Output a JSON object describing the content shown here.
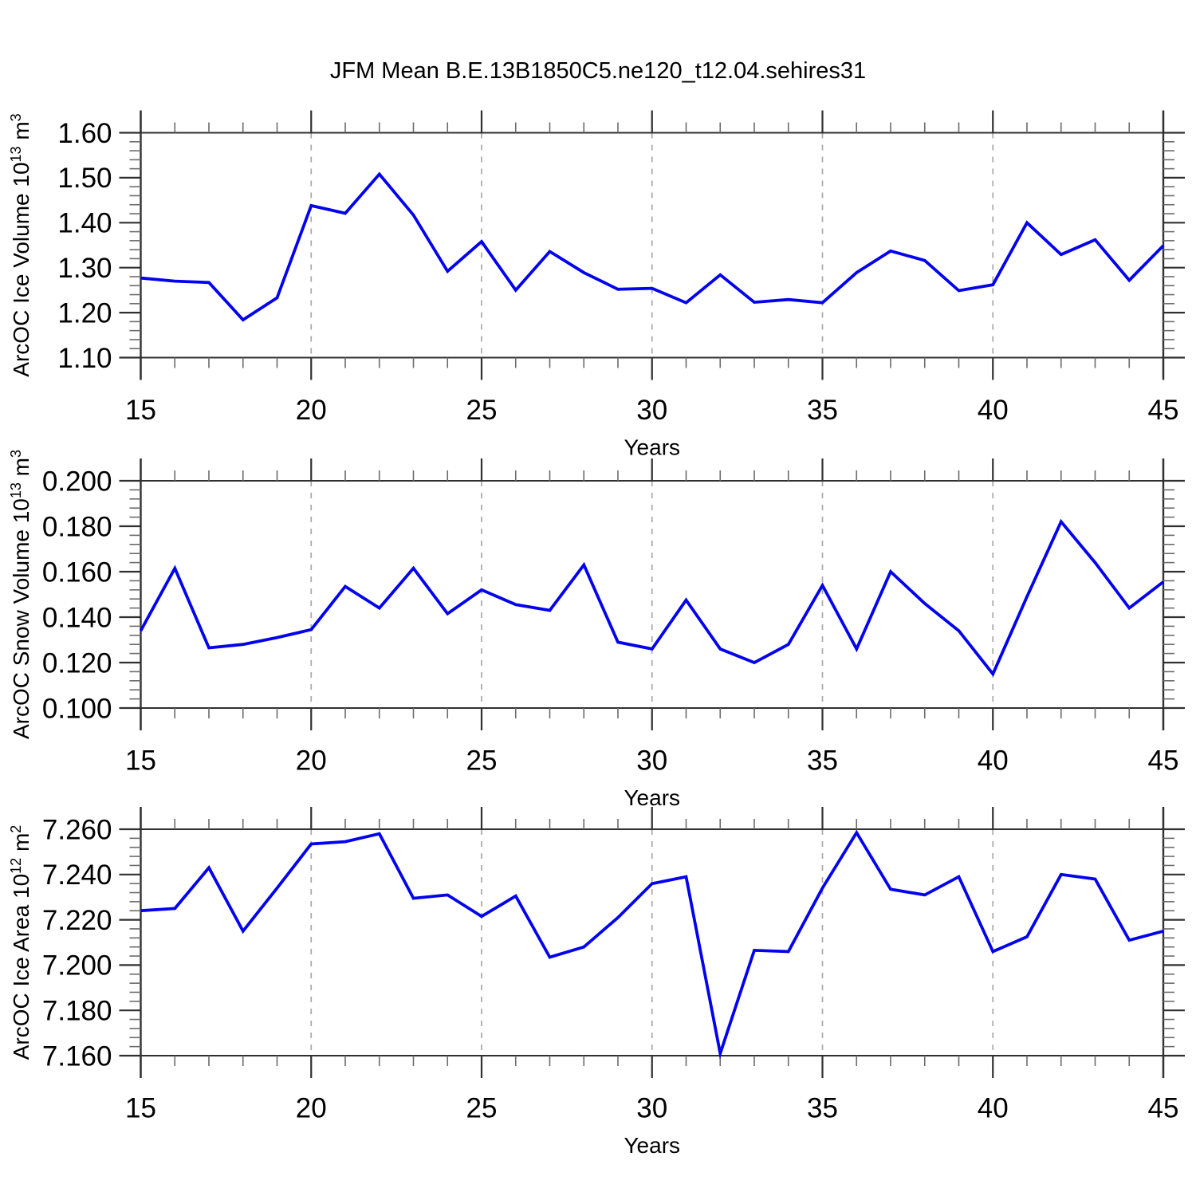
{
  "title": "JFM Mean B.E.13B1850C5.ne120_t12.04.sehires31",
  "colors": {
    "line": "#0202EF",
    "axis": "#303030",
    "minor_tick": "#6B6B6B",
    "grid_dashed": "#A8A8A8",
    "text": "#000000",
    "background": "#FFFFFF"
  },
  "chart_data": [
    {
      "type": "line",
      "title": "JFM Mean B.E.13B1850C5.ne120_t12.04.sehires31",
      "xlabel": "Years",
      "ylabel": "ArcOC Ice Volume 10^13 m^3",
      "ylabel_parts": [
        {
          "text": "ArcOC Ice Volume 10"
        },
        {
          "text": "13",
          "sup": true
        },
        {
          "text": " m"
        },
        {
          "text": "3",
          "sup": true
        }
      ],
      "x": [
        15,
        16,
        17,
        18,
        19,
        20,
        21,
        22,
        23,
        24,
        25,
        26,
        27,
        28,
        29,
        30,
        31,
        32,
        33,
        34,
        35,
        36,
        37,
        38,
        39,
        40,
        41,
        42,
        43,
        44,
        45
      ],
      "y": [
        1.277,
        1.27,
        1.267,
        1.184,
        1.233,
        1.438,
        1.421,
        1.508,
        1.417,
        1.292,
        1.358,
        1.25,
        1.336,
        1.289,
        1.252,
        1.254,
        1.222,
        1.284,
        1.223,
        1.229,
        1.222,
        1.289,
        1.337,
        1.316,
        1.249,
        1.262,
        1.4,
        1.329,
        1.362,
        1.272,
        1.349
      ],
      "xlim": [
        15,
        45
      ],
      "ylim": [
        1.1,
        1.6
      ],
      "xticks": [
        15,
        20,
        25,
        30,
        35,
        40,
        45
      ],
      "xtick_minor_step": 1,
      "yticks": [
        1.1,
        1.2,
        1.3,
        1.4,
        1.5,
        1.6
      ],
      "ytick_labels": [
        "1.10",
        "1.20",
        "1.30",
        "1.40",
        "1.50",
        "1.60"
      ],
      "ytick_minor_step": 0.02,
      "grid_x_dashed": [
        20,
        25,
        30,
        35,
        40
      ],
      "legend": "none"
    },
    {
      "type": "line",
      "xlabel": "Years",
      "ylabel": "ArcOC Snow Volume 10^13 m^3",
      "ylabel_parts": [
        {
          "text": "ArcOC Snow Volume 10"
        },
        {
          "text": "13",
          "sup": true
        },
        {
          "text": " m"
        },
        {
          "text": "3",
          "sup": true
        }
      ],
      "x": [
        15,
        16,
        17,
        18,
        19,
        20,
        21,
        22,
        23,
        24,
        25,
        26,
        27,
        28,
        29,
        30,
        31,
        32,
        33,
        34,
        35,
        36,
        37,
        38,
        39,
        40,
        41,
        42,
        43,
        44,
        45
      ],
      "y": [
        0.134,
        0.1615,
        0.1265,
        0.128,
        0.131,
        0.1345,
        0.1535,
        0.144,
        0.1615,
        0.1415,
        0.152,
        0.1455,
        0.143,
        0.163,
        0.129,
        0.126,
        0.1475,
        0.126,
        0.12,
        0.128,
        0.154,
        0.126,
        0.16,
        0.146,
        0.134,
        0.115,
        0.149,
        0.182,
        0.164,
        0.144,
        0.1555
      ],
      "xlim": [
        15,
        45
      ],
      "ylim": [
        0.1,
        0.2
      ],
      "xticks": [
        15,
        20,
        25,
        30,
        35,
        40,
        45
      ],
      "xtick_minor_step": 1,
      "yticks": [
        0.1,
        0.12,
        0.14,
        0.16,
        0.18,
        0.2
      ],
      "ytick_labels": [
        "0.100",
        "0.120",
        "0.140",
        "0.160",
        "0.180",
        "0.200"
      ],
      "ytick_minor_step": 0.004,
      "grid_x_dashed": [
        20,
        25,
        30,
        35,
        40
      ],
      "legend": "none"
    },
    {
      "type": "line",
      "xlabel": "Years",
      "ylabel": "ArcOC Ice Area 10^12 m^2",
      "ylabel_parts": [
        {
          "text": "ArcOC Ice Area 10"
        },
        {
          "text": "12",
          "sup": true
        },
        {
          "text": " m"
        },
        {
          "text": "2",
          "sup": true
        }
      ],
      "x": [
        15,
        16,
        17,
        18,
        19,
        20,
        21,
        22,
        23,
        24,
        25,
        26,
        27,
        28,
        29,
        30,
        31,
        32,
        33,
        34,
        35,
        36,
        37,
        38,
        39,
        40,
        41,
        42,
        43,
        44,
        45
      ],
      "y": [
        7.224,
        7.225,
        7.243,
        7.215,
        7.234,
        7.2535,
        7.2545,
        7.258,
        7.2295,
        7.231,
        7.2215,
        7.2305,
        7.2035,
        7.208,
        7.221,
        7.236,
        7.239,
        7.161,
        7.2065,
        7.206,
        7.234,
        7.2585,
        7.2335,
        7.231,
        7.239,
        7.206,
        7.2125,
        7.24,
        7.238,
        7.211,
        7.215
      ],
      "xlim": [
        15,
        45
      ],
      "ylim": [
        7.16,
        7.26
      ],
      "xticks": [
        15,
        20,
        25,
        30,
        35,
        40,
        45
      ],
      "xtick_minor_step": 1,
      "yticks": [
        7.16,
        7.18,
        7.2,
        7.22,
        7.24,
        7.26
      ],
      "ytick_labels": [
        "7.160",
        "7.180",
        "7.200",
        "7.220",
        "7.240",
        "7.260"
      ],
      "ytick_minor_step": 0.004,
      "grid_x_dashed": [
        20,
        25,
        30,
        35,
        40
      ],
      "legend": "none"
    }
  ]
}
